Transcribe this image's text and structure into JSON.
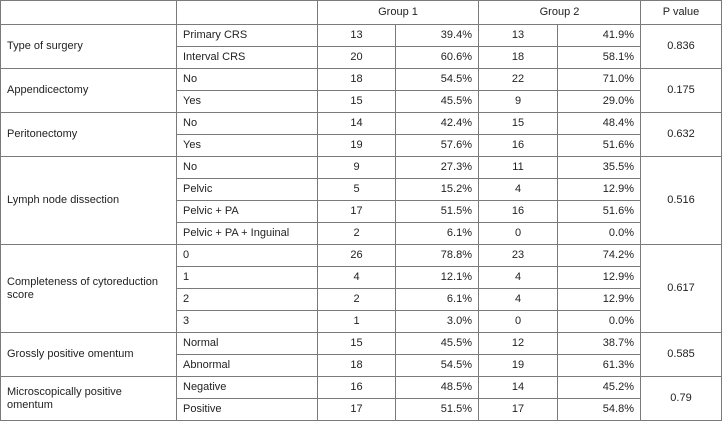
{
  "header": {
    "col_variable": "",
    "col_level": "",
    "group1": "Group 1",
    "group2": "Group 2",
    "pvalue": "P value"
  },
  "rows": [
    {
      "variable": "Type of surgery",
      "p_value": "0.836",
      "levels": [
        {
          "label": "Primary CRS",
          "g1_n": "13",
          "g1_pct": "39.4%",
          "g2_n": "13",
          "g2_pct": "41.9%"
        },
        {
          "label": "Interval CRS",
          "g1_n": "20",
          "g1_pct": "60.6%",
          "g2_n": "18",
          "g2_pct": "58.1%"
        }
      ]
    },
    {
      "variable": "Appendicectomy",
      "p_value": "0.175",
      "levels": [
        {
          "label": "No",
          "g1_n": "18",
          "g1_pct": "54.5%",
          "g2_n": "22",
          "g2_pct": "71.0%"
        },
        {
          "label": "Yes",
          "g1_n": "15",
          "g1_pct": "45.5%",
          "g2_n": "9",
          "g2_pct": "29.0%"
        }
      ]
    },
    {
      "variable": "Peritonectomy",
      "p_value": "0.632",
      "levels": [
        {
          "label": "No",
          "g1_n": "14",
          "g1_pct": "42.4%",
          "g2_n": "15",
          "g2_pct": "48.4%"
        },
        {
          "label": "Yes",
          "g1_n": "19",
          "g1_pct": "57.6%",
          "g2_n": "16",
          "g2_pct": "51.6%"
        }
      ]
    },
    {
      "variable": "Lymph node dissection",
      "p_value": "0.516",
      "levels": [
        {
          "label": "No",
          "g1_n": "9",
          "g1_pct": "27.3%",
          "g2_n": "11",
          "g2_pct": "35.5%"
        },
        {
          "label": "Pelvic",
          "g1_n": "5",
          "g1_pct": "15.2%",
          "g2_n": "4",
          "g2_pct": "12.9%"
        },
        {
          "label": "Pelvic + PA",
          "g1_n": "17",
          "g1_pct": "51.5%",
          "g2_n": "16",
          "g2_pct": "51.6%"
        },
        {
          "label": "Pelvic + PA + Inguinal",
          "g1_n": "2",
          "g1_pct": "6.1%",
          "g2_n": "0",
          "g2_pct": "0.0%"
        }
      ]
    },
    {
      "variable": "Completeness of cytoreduction score",
      "p_value": "0.617",
      "levels": [
        {
          "label": "0",
          "g1_n": "26",
          "g1_pct": "78.8%",
          "g2_n": "23",
          "g2_pct": "74.2%"
        },
        {
          "label": "1",
          "g1_n": "4",
          "g1_pct": "12.1%",
          "g2_n": "4",
          "g2_pct": "12.9%"
        },
        {
          "label": "2",
          "g1_n": "2",
          "g1_pct": "6.1%",
          "g2_n": "4",
          "g2_pct": "12.9%"
        },
        {
          "label": "3",
          "g1_n": "1",
          "g1_pct": "3.0%",
          "g2_n": "0",
          "g2_pct": "0.0%"
        }
      ]
    },
    {
      "variable": "Grossly positive omentum",
      "p_value": "0.585",
      "levels": [
        {
          "label": "Normal",
          "g1_n": "15",
          "g1_pct": "45.5%",
          "g2_n": "12",
          "g2_pct": "38.7%"
        },
        {
          "label": "Abnormal",
          "g1_n": "18",
          "g1_pct": "54.5%",
          "g2_n": "19",
          "g2_pct": "61.3%"
        }
      ]
    },
    {
      "variable": "Microscopically positive omentum",
      "p_value": "0.79",
      "levels": [
        {
          "label": "Negative",
          "g1_n": "16",
          "g1_pct": "48.5%",
          "g2_n": "14",
          "g2_pct": "45.2%"
        },
        {
          "label": "Positive",
          "g1_n": "17",
          "g1_pct": "51.5%",
          "g2_n": "17",
          "g2_pct": "54.8%"
        }
      ]
    }
  ]
}
